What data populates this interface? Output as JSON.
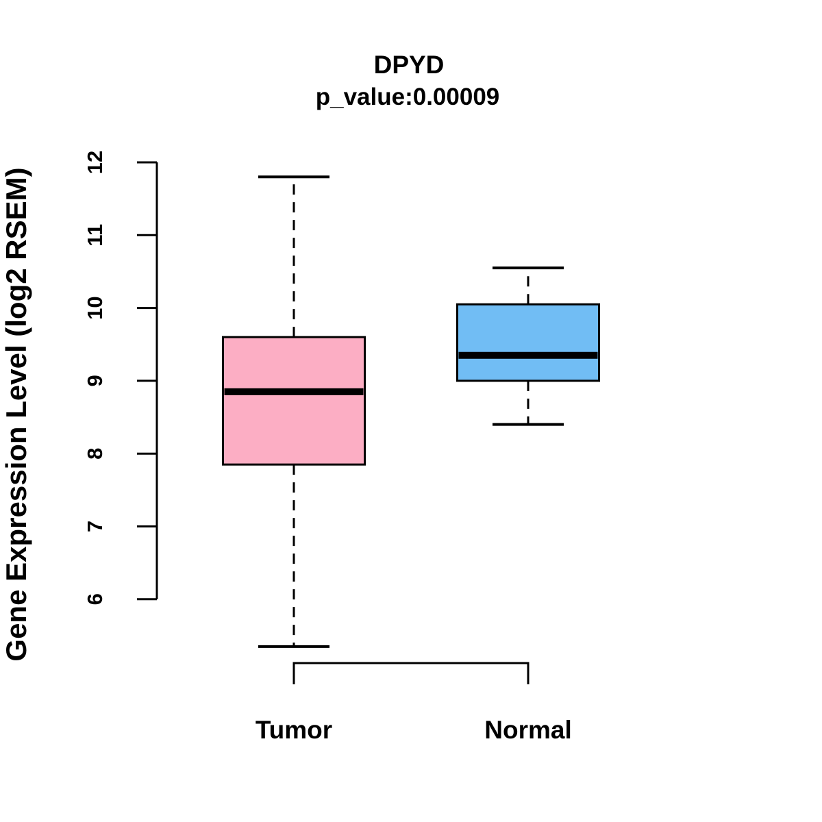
{
  "page": {
    "background_color": "#ffffff",
    "foreground_color": "#000000"
  },
  "chart_data": {
    "type": "box",
    "title": "DPYD",
    "subtitle": "p_value:0.00009",
    "p_value": "0.00009",
    "ylabel": "Gene Expression Level (log2 RSEM)",
    "xlabel": "",
    "categories": [
      "Tumor",
      "Normal"
    ],
    "yticks": [
      6,
      7,
      8,
      9,
      10,
      11,
      12
    ],
    "ylim": [
      5.0,
      12.0
    ],
    "grid": false,
    "legend_position": "none",
    "whisker_style": "dashed",
    "series": [
      {
        "name": "Tumor",
        "color": "#FCAEC4",
        "whisker_low": 5.35,
        "q1": 7.85,
        "median": 8.85,
        "q3": 9.6,
        "whisker_high": 11.8,
        "outliers": []
      },
      {
        "name": "Normal",
        "color": "#71BDF4",
        "whisker_low": 8.4,
        "q1": 9.0,
        "median": 9.35,
        "q3": 10.05,
        "whisker_high": 10.55,
        "outliers": []
      }
    ],
    "annotations": [
      {
        "kind": "comparison-bracket",
        "between": [
          "Tumor",
          "Normal"
        ]
      }
    ]
  }
}
